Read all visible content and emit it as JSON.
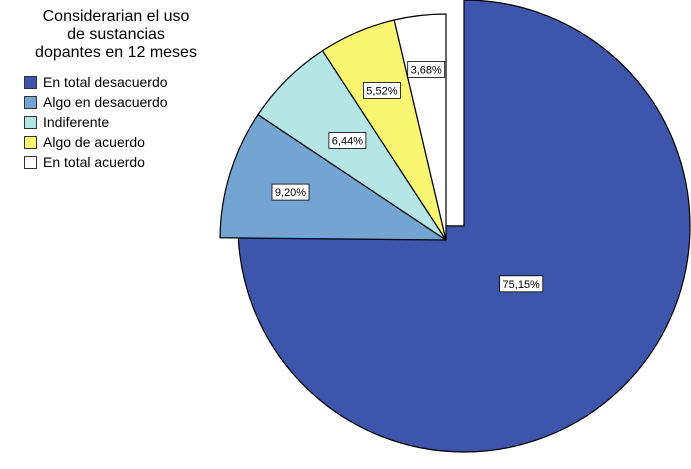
{
  "chart_data": {
    "type": "pie",
    "title_lines": [
      "Considerarian el uso",
      "de sustancias",
      "dopantes en 12 meses"
    ],
    "categories": [
      "En total desacuerdo",
      "Algo en desacuerdo",
      "Indiferente",
      "Algo de acuerdo",
      "En total acuerdo"
    ],
    "values": [
      75.15,
      9.2,
      6.44,
      5.52,
      3.68
    ],
    "data_labels": [
      "75,15%",
      "9,20%",
      "6,44%",
      "5,52%",
      "3,68%"
    ],
    "colors": [
      "#3d55ab",
      "#74a4d1",
      "#b3e6e4",
      "#f9f772",
      "#ffffff"
    ],
    "exploded": [
      "Algo en desacuerdo",
      "Indiferente",
      "Algo de acuerdo",
      "En total acuerdo"
    ],
    "legend_placement": "top-left"
  }
}
